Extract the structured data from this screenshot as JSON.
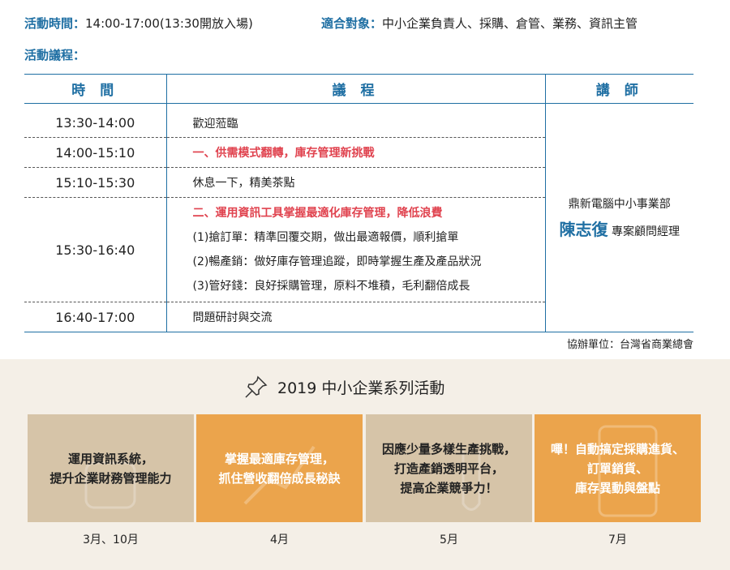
{
  "info": {
    "time_label": "活動時間：",
    "time_value": "14:00-17:00(13:30開放入場)",
    "audience_label": "適合對象：",
    "audience_value": "中小企業負責人、採購、倉管、業務、資訊主管",
    "agenda_label": "活動議程："
  },
  "table": {
    "headers": [
      "時 間",
      "議 程",
      "講 師"
    ],
    "rows": [
      {
        "time": "13:30-14:00",
        "topic": "歡迎蒞臨"
      },
      {
        "time": "14:00-15:10",
        "topic": "一、供需模式翻轉，庫存管理新挑戰"
      },
      {
        "time": "15:10-15:30",
        "topic": "休息一下，精美茶點"
      },
      {
        "time": "15:30-16:40",
        "topic": "二、運用資訊工具掌握最適化庫存管理，降低浪費",
        "subs": [
          "(1)搶訂單：精準回覆交期，做出最適報價，順利搶單",
          "(2)暢產銷：做好庫存管理追蹤，即時掌握生產及產品狀況",
          "(3)管好錢：良好採購管理，原料不堆積，毛利翻倍成長"
        ]
      },
      {
        "time": "16:40-17:00",
        "topic": "問題研討與交流"
      }
    ],
    "speaker": {
      "org": "鼎新電腦中小事業部",
      "name": "陳志復",
      "title": "專案顧問經理"
    },
    "co_organizer": "協辦單位：台灣省商業總會"
  },
  "series": {
    "title": "2019 中小企業系列活動",
    "icon": "pushpin-icon",
    "cards": [
      {
        "text": "運用資訊系統，\n提升企業財務管理能力",
        "month": "3月、10月",
        "color": "#d6c4a8"
      },
      {
        "text": "掌握最適庫存管理，\n抓住營收翻倍成長秘訣",
        "month": "4月",
        "color": "#eba44c"
      },
      {
        "text": "因應少量多樣生產挑戰，\n打造產銷透明平台，\n提高企業競爭力！",
        "month": "5月",
        "color": "#d6c4a8"
      },
      {
        "text": "嗶！自動搞定採購進貨、\n訂單銷貨、\n庫存異動與盤點",
        "month": "7月",
        "color": "#eba44c"
      }
    ]
  }
}
